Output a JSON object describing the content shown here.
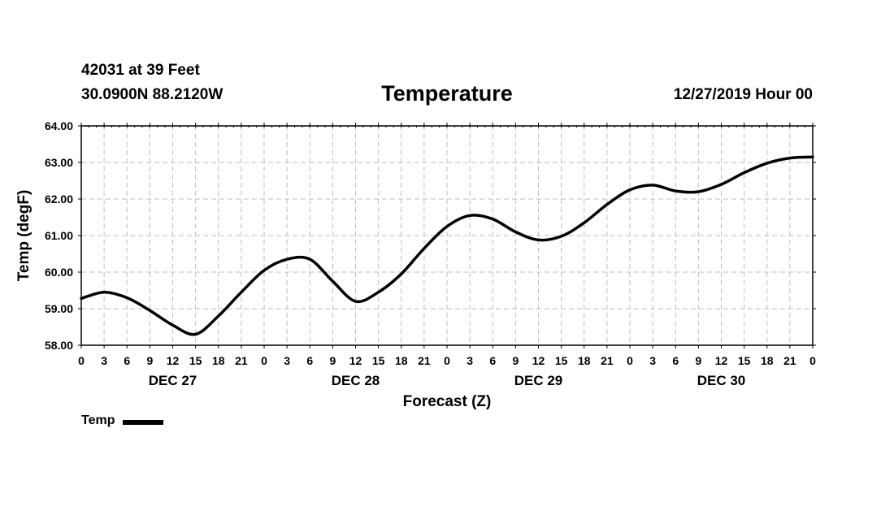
{
  "header": {
    "station": "42031 at 39 Feet",
    "location": "30.0900N 88.2120W",
    "title": "Temperature",
    "timestamp": "12/27/2019 Hour 00"
  },
  "legend": {
    "label": "Temp"
  },
  "chart_data": {
    "type": "line",
    "title": "Temperature",
    "xlabel": "Forecast (Z)",
    "ylabel": "Temp (degF)",
    "ylim": [
      58.0,
      64.0
    ],
    "xlim": [
      0,
      96
    ],
    "grid": true,
    "y_ticks": [
      "58.00",
      "59.00",
      "60.00",
      "61.00",
      "62.00",
      "63.00",
      "64.00"
    ],
    "x_tick_labels": [
      "0",
      "3",
      "6",
      "9",
      "12",
      "15",
      "18",
      "21",
      "0",
      "3",
      "6",
      "9",
      "12",
      "15",
      "18",
      "21",
      "0",
      "3",
      "6",
      "9",
      "12",
      "15",
      "18",
      "21",
      "0",
      "3",
      "6",
      "9",
      "12",
      "15",
      "18",
      "21",
      "0"
    ],
    "day_labels": [
      {
        "label": "DEC 27",
        "hour": 12
      },
      {
        "label": "DEC 28",
        "hour": 36
      },
      {
        "label": "DEC 29",
        "hour": 60
      },
      {
        "label": "DEC 30",
        "hour": 84
      }
    ],
    "series": [
      {
        "name": "Temp",
        "color": "#000000",
        "x": [
          0,
          3,
          6,
          9,
          12,
          15,
          18,
          21,
          24,
          27,
          30,
          33,
          36,
          39,
          42,
          45,
          48,
          51,
          54,
          57,
          60,
          63,
          66,
          69,
          72,
          75,
          78,
          81,
          84,
          87,
          90,
          93,
          96
        ],
        "values": [
          59.28,
          59.45,
          59.3,
          58.95,
          58.55,
          58.3,
          58.8,
          59.45,
          60.05,
          60.35,
          60.35,
          59.75,
          59.2,
          59.45,
          59.95,
          60.65,
          61.25,
          61.55,
          61.45,
          61.1,
          60.88,
          60.98,
          61.35,
          61.85,
          62.25,
          62.38,
          62.22,
          62.2,
          62.4,
          62.72,
          62.98,
          63.12,
          63.15
        ]
      }
    ]
  }
}
